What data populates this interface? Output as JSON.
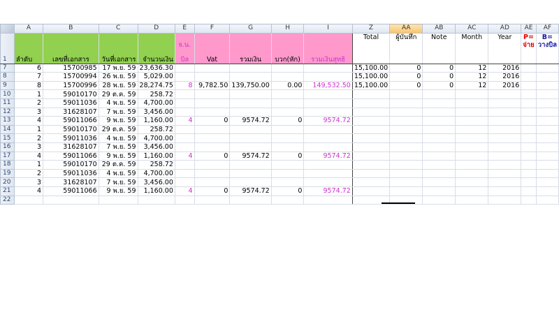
{
  "columns": [
    "A",
    "B",
    "C",
    "D",
    "E",
    "F",
    "G",
    "H",
    "I",
    "Z",
    "AA",
    "AB",
    "AC",
    "AD",
    "AE",
    "AF"
  ],
  "selected_column": "AA",
  "header_row": {
    "row_number": "1",
    "A": "ลำดับ",
    "B": "เลขที่เอกสาร",
    "C": "วันที่เอกสาร",
    "D": "จำนวนเงิน",
    "E_line1": "จ.น.",
    "E_line2": "บิล",
    "F": "Vat",
    "G": "รวมเงิน",
    "H": "บวก(หัก)",
    "I": "รวมเงินสุทธิ",
    "Z": "Total",
    "AA": "ผู้บันทึก",
    "AB": "Note",
    "AC": "Month",
    "AD": "Year",
    "AE_line1": "P=",
    "AE_line2": "จ่าย",
    "AF_line1": "B=",
    "AF_line2": "วางบิล"
  },
  "colors": {
    "green_header": "#92d050",
    "pink_header": "#ff99cc",
    "magenta_text": "#cc33cc"
  },
  "rows": [
    {
      "n": "7",
      "A": "6",
      "B": "15700985",
      "C": "17 พ.ย. 59",
      "D": "23,636.30",
      "E": "",
      "F": "",
      "G": "",
      "H": "",
      "I": "",
      "Z": "15,100.00",
      "AA": "0",
      "AB": "0",
      "AC": "12",
      "AD": "2016"
    },
    {
      "n": "8",
      "A": "7",
      "B": "15700994",
      "C": "26 พ.ย. 59",
      "D": "5,029.00",
      "E": "",
      "F": "",
      "G": "",
      "H": "",
      "I": "",
      "Z": "15,100.00",
      "AA": "0",
      "AB": "0",
      "AC": "12",
      "AD": "2016"
    },
    {
      "n": "9",
      "A": "8",
      "B": "15700996",
      "C": "28 พ.ย. 59",
      "D": "28,274.75",
      "E": "8",
      "F": "9,782.50",
      "G": "139,750.00",
      "H": "0.00",
      "I": "149,532.50",
      "Z": "15,100.00",
      "AA": "0",
      "AB": "0",
      "AC": "12",
      "AD": "2016"
    },
    {
      "n": "10",
      "A": "1",
      "B": "59010170",
      "C": "29 ต.ค. 59",
      "D": "258.72",
      "E": "",
      "F": "",
      "G": "",
      "H": "",
      "I": "",
      "Z": "",
      "AA": "",
      "AB": "",
      "AC": "",
      "AD": ""
    },
    {
      "n": "11",
      "A": "2",
      "B": "59011036",
      "C": "4 พ.ย. 59",
      "D": "4,700.00",
      "E": "",
      "F": "",
      "G": "",
      "H": "",
      "I": "",
      "Z": "",
      "AA": "",
      "AB": "",
      "AC": "",
      "AD": ""
    },
    {
      "n": "12",
      "A": "3",
      "B": "31628107",
      "C": "7 พ.ย. 59",
      "D": "3,456.00",
      "E": "",
      "F": "",
      "G": "",
      "H": "",
      "I": "",
      "Z": "",
      "AA": "",
      "AB": "",
      "AC": "",
      "AD": ""
    },
    {
      "n": "13",
      "A": "4",
      "B": "59011066",
      "C": "9 พ.ย. 59",
      "D": "1,160.00",
      "E": "4",
      "F": "0",
      "G": "9574.72",
      "H": "0",
      "I": "9574.72",
      "Z": "",
      "AA": "",
      "AB": "",
      "AC": "",
      "AD": ""
    },
    {
      "n": "14",
      "A": "1",
      "B": "59010170",
      "C": "29 ต.ค. 59",
      "D": "258.72",
      "E": "",
      "F": "",
      "G": "",
      "H": "",
      "I": "",
      "Z": "",
      "AA": "",
      "AB": "",
      "AC": "",
      "AD": ""
    },
    {
      "n": "15",
      "A": "2",
      "B": "59011036",
      "C": "4 พ.ย. 59",
      "D": "4,700.00",
      "E": "",
      "F": "",
      "G": "",
      "H": "",
      "I": "",
      "Z": "",
      "AA": "",
      "AB": "",
      "AC": "",
      "AD": ""
    },
    {
      "n": "16",
      "A": "3",
      "B": "31628107",
      "C": "7 พ.ย. 59",
      "D": "3,456.00",
      "E": "",
      "F": "",
      "G": "",
      "H": "",
      "I": "",
      "Z": "",
      "AA": "",
      "AB": "",
      "AC": "",
      "AD": ""
    },
    {
      "n": "17",
      "A": "4",
      "B": "59011066",
      "C": "9 พ.ย. 59",
      "D": "1,160.00",
      "E": "4",
      "F": "0",
      "G": "9574.72",
      "H": "0",
      "I": "9574.72",
      "Z": "",
      "AA": "",
      "AB": "",
      "AC": "",
      "AD": ""
    },
    {
      "n": "18",
      "A": "1",
      "B": "59010170",
      "C": "29 ต.ค. 59",
      "D": "258.72",
      "E": "",
      "F": "",
      "G": "",
      "H": "",
      "I": "",
      "Z": "",
      "AA": "",
      "AB": "",
      "AC": "",
      "AD": ""
    },
    {
      "n": "19",
      "A": "2",
      "B": "59011036",
      "C": "4 พ.ย. 59",
      "D": "4,700.00",
      "E": "",
      "F": "",
      "G": "",
      "H": "",
      "I": "",
      "Z": "",
      "AA": "",
      "AB": "",
      "AC": "",
      "AD": ""
    },
    {
      "n": "20",
      "A": "3",
      "B": "31628107",
      "C": "7 พ.ย. 59",
      "D": "3,456.00",
      "E": "",
      "F": "",
      "G": "",
      "H": "",
      "I": "",
      "Z": "",
      "AA": "",
      "AB": "",
      "AC": "",
      "AD": ""
    },
    {
      "n": "21",
      "A": "4",
      "B": "59011066",
      "C": "9 พ.ย. 59",
      "D": "1,160.00",
      "E": "4",
      "F": "0",
      "G": "9574.72",
      "H": "0",
      "I": "9574.72",
      "Z": "",
      "AA": "",
      "AB": "",
      "AC": "",
      "AD": ""
    },
    {
      "n": "22",
      "A": "",
      "B": "",
      "C": "",
      "D": "",
      "E": "",
      "F": "",
      "G": "",
      "H": "",
      "I": "",
      "Z": "",
      "AA": "",
      "AB": "",
      "AC": "",
      "AD": ""
    }
  ]
}
